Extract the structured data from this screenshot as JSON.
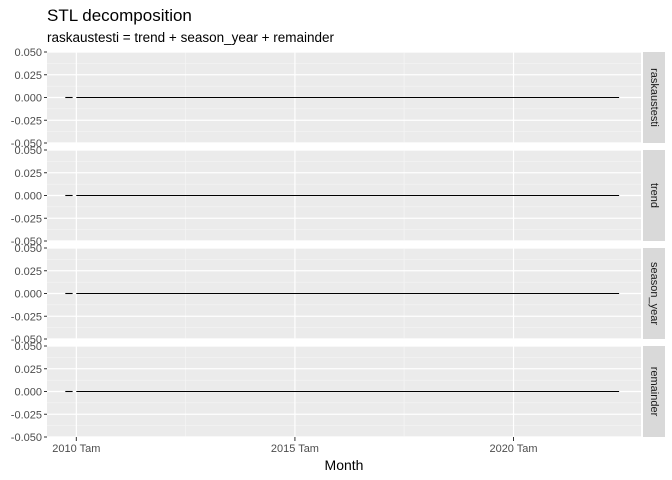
{
  "chart_data": {
    "type": "line",
    "title": "STL decomposition",
    "subtitle": "raskaustesti = trend + season_year + remainder",
    "xlabel": "Month",
    "x_ticks": [
      "2010 Tam",
      "2015 Tam",
      "2020 Tam"
    ],
    "y_ticks": [
      "0.050",
      "0.025",
      "0.000",
      "-0.025",
      "-0.050"
    ],
    "ylim": [
      -0.05,
      0.05
    ],
    "grid": true,
    "facets": [
      {
        "name": "raskaustesti",
        "segments": [
          {
            "x": [
              "2009-10",
              "2009-12"
            ],
            "y": [
              0,
              0
            ]
          },
          {
            "x": [
              "2010-01",
              "2022-06"
            ],
            "y": [
              0,
              0
            ]
          }
        ]
      },
      {
        "name": "trend",
        "segments": [
          {
            "x": [
              "2009-10",
              "2009-12"
            ],
            "y": [
              0,
              0
            ]
          },
          {
            "x": [
              "2010-01",
              "2022-06"
            ],
            "y": [
              0,
              0
            ]
          }
        ]
      },
      {
        "name": "season_year",
        "segments": [
          {
            "x": [
              "2009-10",
              "2009-12"
            ],
            "y": [
              0,
              0
            ]
          },
          {
            "x": [
              "2010-01",
              "2022-06"
            ],
            "y": [
              0,
              0
            ]
          }
        ]
      },
      {
        "name": "remainder",
        "segments": [
          {
            "x": [
              "2009-10",
              "2009-12"
            ],
            "y": [
              0,
              0
            ]
          },
          {
            "x": [
              "2010-01",
              "2022-06"
            ],
            "y": [
              0,
              0
            ]
          }
        ]
      }
    ]
  }
}
